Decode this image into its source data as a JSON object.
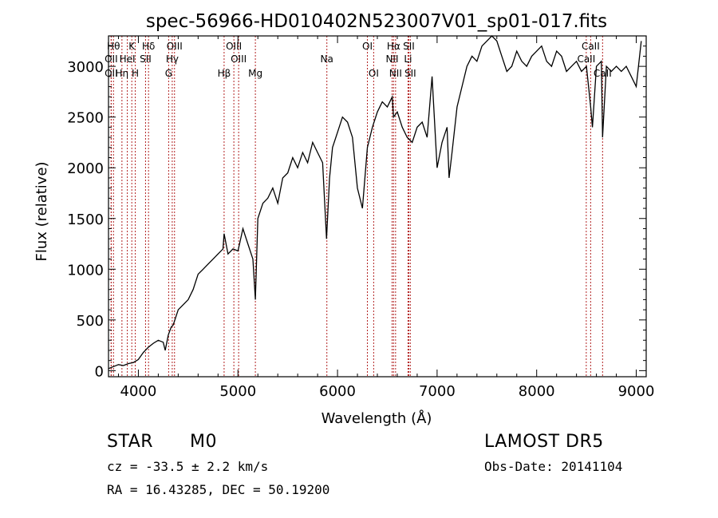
{
  "chart_data": {
    "type": "line",
    "title": "spec-56966-HD010402N523007V01_sp01-017.fits",
    "xlabel": "Wavelength (Å)",
    "ylabel": "Flux (relative)",
    "xlim": [
      3700,
      9100
    ],
    "ylim": [
      -60,
      3300
    ],
    "xticks": [
      4000,
      5000,
      6000,
      7000,
      8000,
      9000
    ],
    "yticks": [
      0,
      500,
      1000,
      1500,
      2000,
      2500,
      3000
    ],
    "grid": false,
    "line_color": "#000000",
    "marker_color": "#b22222",
    "x": [
      3700,
      3750,
      3800,
      3850,
      3900,
      3950,
      4000,
      4050,
      4100,
      4150,
      4200,
      4250,
      4270,
      4300,
      4330,
      4350,
      4400,
      4450,
      4500,
      4550,
      4600,
      4650,
      4700,
      4750,
      4800,
      4850,
      4861,
      4900,
      4950,
      5000,
      5050,
      5100,
      5150,
      5175,
      5200,
      5250,
      5300,
      5350,
      5400,
      5450,
      5500,
      5550,
      5600,
      5650,
      5700,
      5750,
      5800,
      5850,
      5890,
      5920,
      5950,
      6000,
      6050,
      6100,
      6150,
      6200,
      6250,
      6300,
      6350,
      6400,
      6450,
      6500,
      6550,
      6563,
      6600,
      6650,
      6700,
      6750,
      6800,
      6850,
      6900,
      6950,
      7000,
      7050,
      7100,
      7120,
      7150,
      7200,
      7250,
      7300,
      7350,
      7400,
      7450,
      7500,
      7550,
      7600,
      7650,
      7700,
      7750,
      7800,
      7850,
      7900,
      7950,
      8000,
      8050,
      8100,
      8150,
      8200,
      8250,
      8300,
      8350,
      8400,
      8450,
      8500,
      8542,
      8560,
      8600,
      8650,
      8662,
      8700,
      8750,
      8800,
      8850,
      8900,
      8950,
      9000,
      9050
    ],
    "y": [
      20,
      40,
      60,
      50,
      70,
      80,
      110,
      180,
      230,
      270,
      300,
      280,
      200,
      350,
      430,
      450,
      600,
      650,
      700,
      800,
      950,
      1000,
      1050,
      1100,
      1150,
      1200,
      1350,
      1150,
      1200,
      1180,
      1400,
      1250,
      1100,
      700,
      1500,
      1650,
      1700,
      1800,
      1650,
      1900,
      1950,
      2100,
      2000,
      2150,
      2050,
      2250,
      2150,
      2050,
      1300,
      1900,
      2200,
      2350,
      2500,
      2450,
      2300,
      1800,
      1600,
      2200,
      2400,
      2550,
      2650,
      2600,
      2700,
      2500,
      2550,
      2400,
      2300,
      2250,
      2400,
      2450,
      2300,
      2900,
      2000,
      2250,
      2400,
      1900,
      2150,
      2600,
      2800,
      3000,
      3100,
      3050,
      3200,
      3250,
      3300,
      3250,
      3100,
      2950,
      3000,
      3150,
      3050,
      3000,
      3100,
      3150,
      3200,
      3050,
      3000,
      3150,
      3100,
      2950,
      3000,
      3050,
      2950,
      3000,
      2600,
      2400,
      3000,
      3050,
      2300,
      3000,
      2950,
      3000,
      2950,
      3000,
      2900,
      2800,
      3250
    ],
    "lines": [
      {
        "w": 3750,
        "label": "Hθ",
        "row": 0
      },
      {
        "w": 3727,
        "label": "OII",
        "row": 1
      },
      {
        "w": 3727,
        "label": "OII",
        "row": 2
      },
      {
        "w": 3835,
        "label": "Hη",
        "row": 2
      },
      {
        "w": 3889,
        "label": "HeI",
        "row": 1
      },
      {
        "w": 3934,
        "label": "K",
        "row": 0
      },
      {
        "w": 3969,
        "label": "H",
        "row": 2
      },
      {
        "w": 4072,
        "label": "SII",
        "row": 1
      },
      {
        "w": 4102,
        "label": "Hδ",
        "row": 0
      },
      {
        "w": 4304,
        "label": "G",
        "row": 2
      },
      {
        "w": 4340,
        "label": "Hγ",
        "row": 1
      },
      {
        "w": 4363,
        "label": "OIII",
        "row": 0
      },
      {
        "w": 4861,
        "label": "Hβ",
        "row": 2
      },
      {
        "w": 4959,
        "label": "OIII",
        "row": 0
      },
      {
        "w": 5007,
        "label": "OIII",
        "row": 1
      },
      {
        "w": 5175,
        "label": "Mg",
        "row": 2
      },
      {
        "w": 5893,
        "label": "Na",
        "row": 1
      },
      {
        "w": 6300,
        "label": "OI",
        "row": 0
      },
      {
        "w": 6363,
        "label": "OI",
        "row": 2
      },
      {
        "w": 6548,
        "label": "NII",
        "row": 1
      },
      {
        "w": 6563,
        "label": "Hα",
        "row": 0
      },
      {
        "w": 6583,
        "label": "NII",
        "row": 2
      },
      {
        "w": 6708,
        "label": "Li",
        "row": 1
      },
      {
        "w": 6716,
        "label": "SII",
        "row": 0
      },
      {
        "w": 6731,
        "label": "SII",
        "row": 2
      },
      {
        "w": 8498,
        "label": "CaII",
        "row": 1
      },
      {
        "w": 8542,
        "label": "CaII",
        "row": 0
      },
      {
        "w": 8662,
        "label": "CaII",
        "row": 2
      }
    ]
  },
  "info": {
    "object_class": "STAR",
    "subclass": "M0",
    "survey": "LAMOST  DR5",
    "redshift": "cz = -33.5 ± 2.2 km/s",
    "obs_date": "Obs-Date: 20141104",
    "coords": "RA =  16.43285, DEC =  50.19200"
  }
}
